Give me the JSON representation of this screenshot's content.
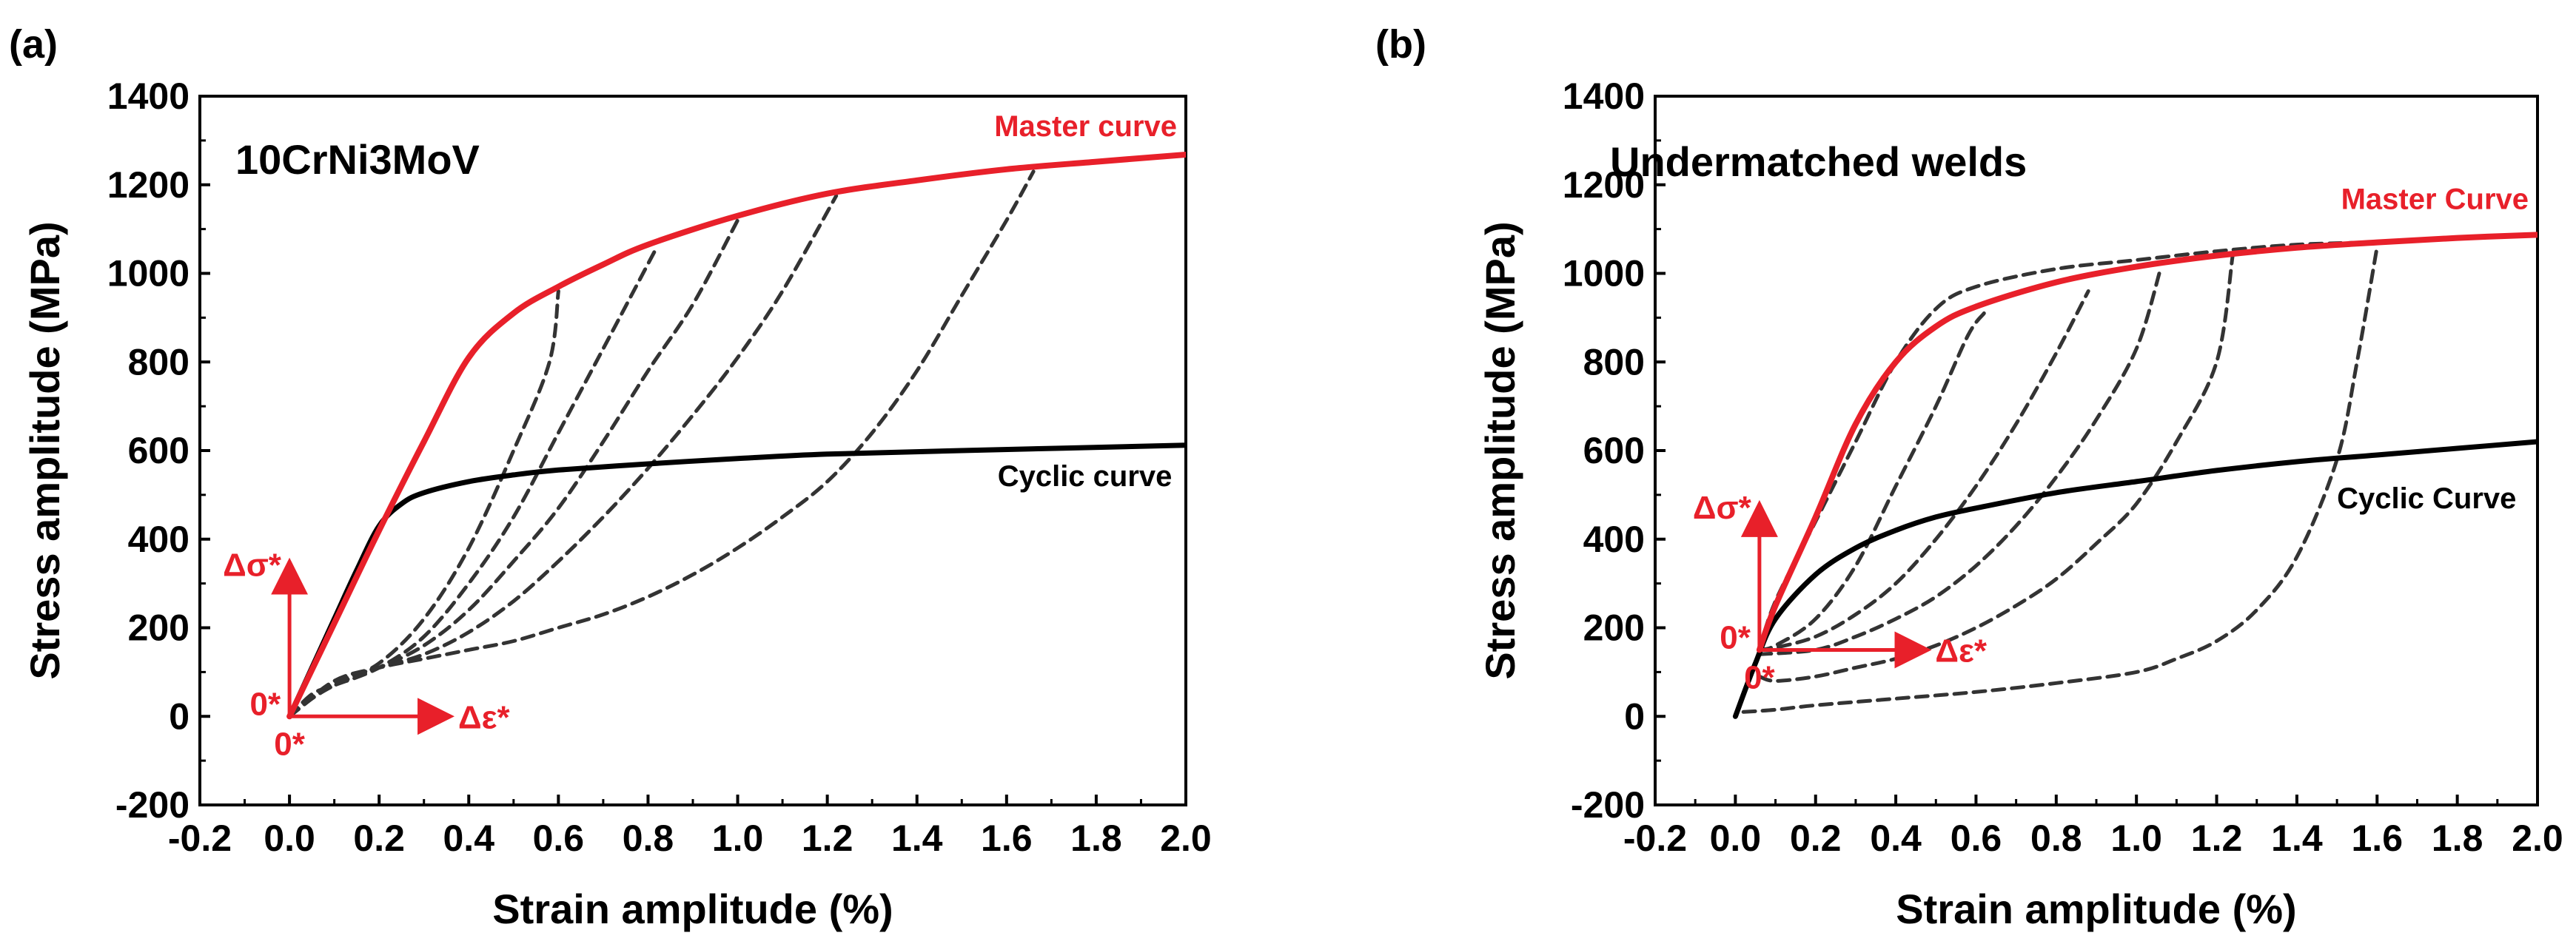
{
  "chart_data": [
    {
      "type": "line",
      "panel_label": "(a)",
      "title": "10CrNi3MoV",
      "xlabel": "Strain amplitude (%)",
      "ylabel": "Stress amplitude (MPa)",
      "xlim": [
        -0.2,
        2.0
      ],
      "ylim": [
        -200,
        1400
      ],
      "xticks": [
        -0.2,
        0.0,
        0.2,
        0.4,
        0.6,
        0.8,
        1.0,
        1.2,
        1.4,
        1.6,
        1.8,
        2.0
      ],
      "xtick_labels": [
        "-0.2",
        "0.0",
        "0.2",
        "0.4",
        "0.6",
        "0.8",
        "1.0",
        "1.2",
        "1.4",
        "1.6",
        "1.8",
        "2.0"
      ],
      "yticks": [
        -200,
        0,
        200,
        400,
        600,
        800,
        1000,
        1200,
        1400
      ],
      "ytick_labels": [
        "-200",
        "0",
        "200",
        "400",
        "600",
        "800",
        "1000",
        "1200",
        "1400"
      ],
      "colors": {
        "master": "#e8202a",
        "cyclic": "#000000",
        "hysteresis": "#333333",
        "annotation": "#e8202a"
      },
      "annotations": {
        "origin_y": "0*",
        "origin_x": "0*",
        "axis_sigma": "Δσ*",
        "axis_eps": "Δε*",
        "origin_point": [
          0.0,
          0
        ],
        "arrow_sigma_to": [
          0.0,
          350
        ],
        "arrow_eps_to": [
          0.36,
          0
        ]
      },
      "series": [
        {
          "name": "Master curve",
          "role": "master",
          "label_at": [
            1.65,
            1310
          ],
          "points": [
            [
              0.0,
              0
            ],
            [
              0.1,
              210
            ],
            [
              0.2,
              420
            ],
            [
              0.3,
              620
            ],
            [
              0.4,
              810
            ],
            [
              0.5,
              910
            ],
            [
              0.6,
              970
            ],
            [
              0.7,
              1020
            ],
            [
              0.8,
              1065
            ],
            [
              1.0,
              1130
            ],
            [
              1.2,
              1180
            ],
            [
              1.4,
              1210
            ],
            [
              1.6,
              1235
            ],
            [
              1.8,
              1252
            ],
            [
              2.0,
              1268
            ]
          ]
        },
        {
          "name": "Cyclic curve",
          "role": "cyclic",
          "label_at": [
            1.58,
            520
          ],
          "points": [
            [
              0.0,
              0
            ],
            [
              0.05,
              110
            ],
            [
              0.1,
              220
            ],
            [
              0.15,
              330
            ],
            [
              0.2,
              430
            ],
            [
              0.25,
              480
            ],
            [
              0.3,
              505
            ],
            [
              0.4,
              530
            ],
            [
              0.5,
              545
            ],
            [
              0.6,
              556
            ],
            [
              0.8,
              570
            ],
            [
              1.0,
              582
            ],
            [
              1.2,
              592
            ],
            [
              1.5,
              600
            ],
            [
              2.0,
              612
            ]
          ]
        },
        {
          "name": "",
          "role": "hysteresis",
          "points": [
            [
              0.0,
              0
            ],
            [
              0.05,
              40
            ],
            [
              0.1,
              70
            ],
            [
              0.2,
              120
            ],
            [
              0.3,
              220
            ],
            [
              0.4,
              380
            ],
            [
              0.5,
              600
            ],
            [
              0.58,
              800
            ],
            [
              0.6,
              960
            ]
          ]
        },
        {
          "name": "",
          "role": "hysteresis",
          "points": [
            [
              0.0,
              0
            ],
            [
              0.05,
              50
            ],
            [
              0.1,
              70
            ],
            [
              0.2,
              110
            ],
            [
              0.3,
              180
            ],
            [
              0.4,
              300
            ],
            [
              0.5,
              450
            ],
            [
              0.6,
              640
            ],
            [
              0.7,
              830
            ],
            [
              0.82,
              1060
            ]
          ]
        },
        {
          "name": "",
          "role": "hysteresis",
          "points": [
            [
              0.0,
              0
            ],
            [
              0.1,
              75
            ],
            [
              0.2,
              110
            ],
            [
              0.3,
              160
            ],
            [
              0.4,
              240
            ],
            [
              0.5,
              350
            ],
            [
              0.6,
              470
            ],
            [
              0.7,
              620
            ],
            [
              0.8,
              780
            ],
            [
              0.9,
              930
            ],
            [
              1.0,
              1120
            ]
          ]
        },
        {
          "name": "",
          "role": "hysteresis",
          "points": [
            [
              0.0,
              0
            ],
            [
              0.1,
              80
            ],
            [
              0.2,
              110
            ],
            [
              0.3,
              140
            ],
            [
              0.4,
              190
            ],
            [
              0.5,
              260
            ],
            [
              0.6,
              350
            ],
            [
              0.7,
              450
            ],
            [
              0.8,
              560
            ],
            [
              0.9,
              680
            ],
            [
              1.0,
              810
            ],
            [
              1.1,
              960
            ],
            [
              1.22,
              1175
            ]
          ]
        },
        {
          "name": "",
          "role": "hysteresis",
          "points": [
            [
              0.0,
              0
            ],
            [
              0.1,
              80
            ],
            [
              0.2,
              110
            ],
            [
              0.3,
              130
            ],
            [
              0.4,
              150
            ],
            [
              0.5,
              170
            ],
            [
              0.6,
              200
            ],
            [
              0.7,
              230
            ],
            [
              0.8,
              270
            ],
            [
              0.9,
              320
            ],
            [
              1.0,
              380
            ],
            [
              1.1,
              450
            ],
            [
              1.2,
              530
            ],
            [
              1.3,
              640
            ],
            [
              1.4,
              780
            ],
            [
              1.5,
              950
            ],
            [
              1.6,
              1120
            ],
            [
              1.66,
              1230
            ]
          ]
        }
      ]
    },
    {
      "type": "line",
      "panel_label": "(b)",
      "title": "Undermatched welds",
      "xlabel": "Strain amplitude (%)",
      "ylabel": "Stress amplitude (MPa)",
      "xlim": [
        -0.2,
        2.0
      ],
      "ylim": [
        -200,
        1400
      ],
      "xticks": [
        -0.2,
        0.0,
        0.2,
        0.4,
        0.6,
        0.8,
        1.0,
        1.2,
        1.4,
        1.6,
        1.8,
        2.0
      ],
      "xtick_labels": [
        "-0.2",
        "0.0",
        "0.2",
        "0.4",
        "0.6",
        "0.8",
        "1.0",
        "1.2",
        "1.4",
        "1.6",
        "1.8",
        "2.0"
      ],
      "yticks": [
        -200,
        0,
        200,
        400,
        600,
        800,
        1000,
        1200,
        1400
      ],
      "ytick_labels": [
        "-200",
        "0",
        "200",
        "400",
        "600",
        "800",
        "1000",
        "1200",
        "1400"
      ],
      "colors": {
        "master": "#e8202a",
        "cyclic": "#000000",
        "hysteresis": "#333333",
        "annotation": "#e8202a"
      },
      "annotations": {
        "origin_y": "0*",
        "origin_x": "0*",
        "axis_sigma": "Δσ*",
        "axis_eps": "Δε*",
        "origin_point": [
          0.06,
          150
        ],
        "arrow_sigma_to": [
          0.06,
          480
        ],
        "arrow_eps_to": [
          0.48,
          150
        ]
      },
      "series": [
        {
          "name": "Master Curve",
          "role": "master",
          "label_at": [
            1.48,
            1145
          ],
          "points": [
            [
              0.06,
              150
            ],
            [
              0.1,
              250
            ],
            [
              0.2,
              450
            ],
            [
              0.3,
              660
            ],
            [
              0.4,
              800
            ],
            [
              0.5,
              880
            ],
            [
              0.6,
              925
            ],
            [
              0.8,
              980
            ],
            [
              1.0,
              1015
            ],
            [
              1.2,
              1040
            ],
            [
              1.4,
              1058
            ],
            [
              1.6,
              1070
            ],
            [
              1.8,
              1080
            ],
            [
              2.0,
              1087
            ]
          ]
        },
        {
          "name": "Cyclic Curve",
          "role": "cyclic",
          "label_at": [
            1.5,
            470
          ],
          "points": [
            [
              0.0,
              0
            ],
            [
              0.05,
              120
            ],
            [
              0.1,
              220
            ],
            [
              0.2,
              320
            ],
            [
              0.3,
              380
            ],
            [
              0.4,
              420
            ],
            [
              0.5,
              450
            ],
            [
              0.6,
              470
            ],
            [
              0.8,
              505
            ],
            [
              1.0,
              530
            ],
            [
              1.2,
              555
            ],
            [
              1.4,
              575
            ],
            [
              1.6,
              590
            ],
            [
              1.8,
              605
            ],
            [
              2.0,
              620
            ]
          ]
        },
        {
          "name": "",
          "role": "hysteresis",
          "points": [
            [
              0.06,
              150
            ],
            [
              0.1,
              160
            ],
            [
              0.2,
              220
            ],
            [
              0.3,
              340
            ],
            [
              0.4,
              520
            ],
            [
              0.5,
              700
            ],
            [
              0.58,
              860
            ],
            [
              0.62,
              910
            ]
          ]
        },
        {
          "name": "",
          "role": "hysteresis",
          "points": [
            [
              0.06,
              150
            ],
            [
              0.1,
              155
            ],
            [
              0.2,
              180
            ],
            [
              0.3,
              230
            ],
            [
              0.4,
              300
            ],
            [
              0.5,
              400
            ],
            [
              0.6,
              520
            ],
            [
              0.7,
              660
            ],
            [
              0.8,
              820
            ],
            [
              0.88,
              960
            ]
          ]
        },
        {
          "name": "",
          "role": "hysteresis",
          "points": [
            [
              0.06,
              140
            ],
            [
              0.2,
              150
            ],
            [
              0.3,
              180
            ],
            [
              0.4,
              220
            ],
            [
              0.5,
              270
            ],
            [
              0.6,
              340
            ],
            [
              0.7,
              430
            ],
            [
              0.8,
              540
            ],
            [
              0.9,
              670
            ],
            [
              1.0,
              830
            ],
            [
              1.06,
              1010
            ]
          ]
        },
        {
          "name": "",
          "role": "hysteresis",
          "points": [
            [
              0.06,
              90
            ],
            [
              0.1,
              80
            ],
            [
              0.2,
              90
            ],
            [
              0.3,
              110
            ],
            [
              0.4,
              130
            ],
            [
              0.5,
              160
            ],
            [
              0.6,
              200
            ],
            [
              0.7,
              250
            ],
            [
              0.8,
              310
            ],
            [
              0.9,
              390
            ],
            [
              1.0,
              480
            ],
            [
              1.1,
              620
            ],
            [
              1.2,
              800
            ],
            [
              1.24,
              1040
            ]
          ]
        },
        {
          "name": "",
          "role": "hysteresis",
          "points": [
            [
              0.02,
              10
            ],
            [
              0.1,
              15
            ],
            [
              0.2,
              25
            ],
            [
              0.4,
              40
            ],
            [
              0.6,
              55
            ],
            [
              0.8,
              75
            ],
            [
              1.0,
              100
            ],
            [
              1.1,
              130
            ],
            [
              1.2,
              170
            ],
            [
              1.3,
              240
            ],
            [
              1.4,
              360
            ],
            [
              1.5,
              580
            ],
            [
              1.55,
              800
            ],
            [
              1.6,
              1060
            ]
          ]
        },
        {
          "name": "",
          "role": "hysteresis",
          "points": [
            [
              0.06,
              150
            ],
            [
              0.1,
              260
            ],
            [
              0.2,
              440
            ],
            [
              0.3,
              620
            ],
            [
              0.4,
              800
            ],
            [
              0.5,
              920
            ],
            [
              0.6,
              970
            ],
            [
              0.8,
              1010
            ],
            [
              1.0,
              1030
            ],
            [
              1.2,
              1050
            ],
            [
              1.4,
              1065
            ],
            [
              1.6,
              1070
            ]
          ]
        }
      ]
    }
  ]
}
